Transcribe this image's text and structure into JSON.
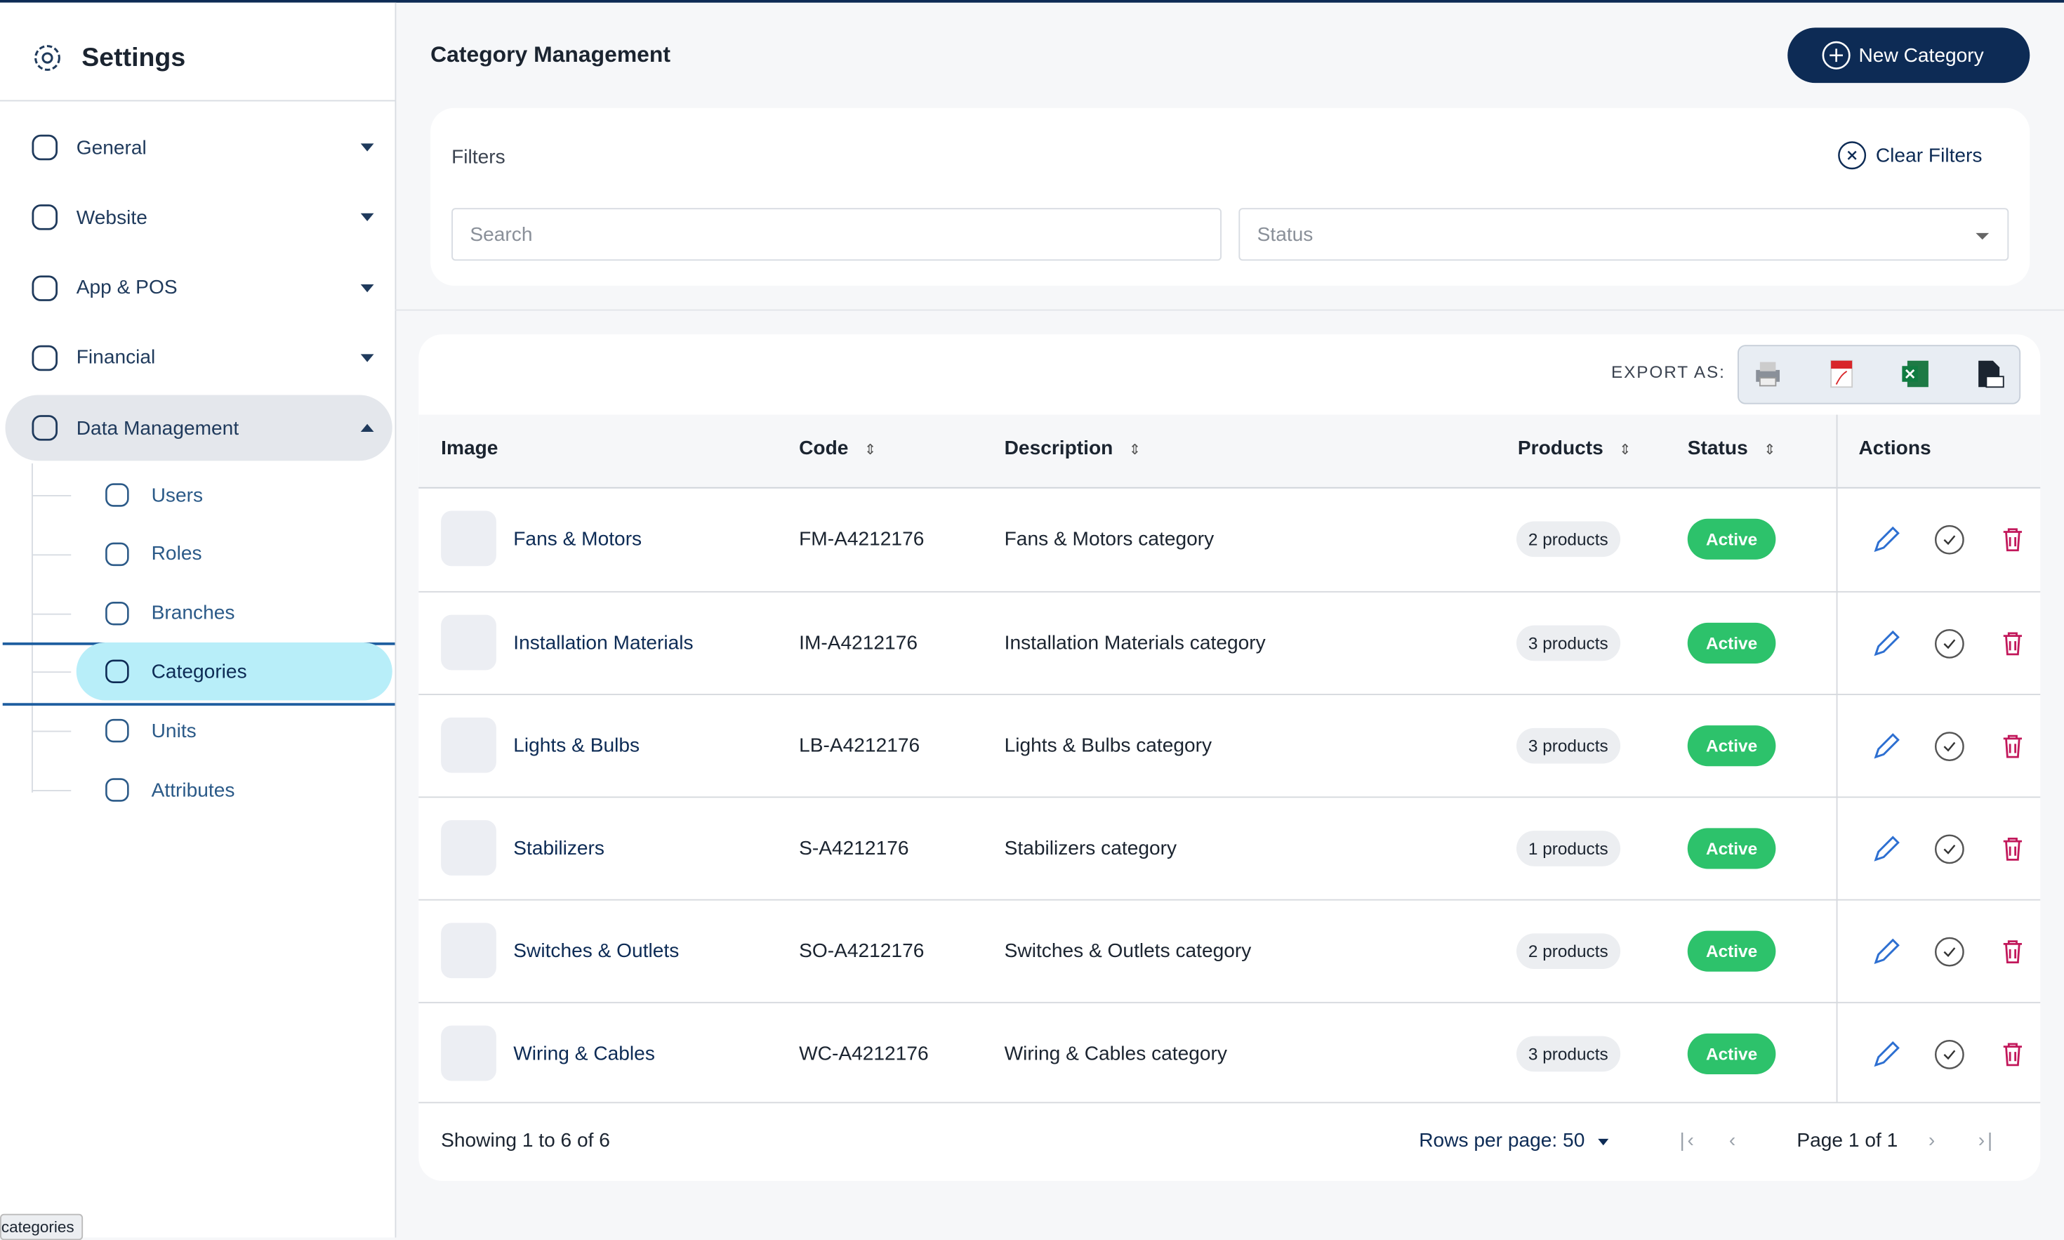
{
  "sidebar": {
    "title": "Settings",
    "menu": [
      {
        "label": "General"
      },
      {
        "label": "Website"
      },
      {
        "label": "App & POS"
      },
      {
        "label": "Financial"
      },
      {
        "label": "Data Management"
      }
    ],
    "submenu": [
      {
        "label": "Users"
      },
      {
        "label": "Roles"
      },
      {
        "label": "Branches"
      },
      {
        "label": "Categories"
      },
      {
        "label": "Units"
      },
      {
        "label": "Attributes"
      }
    ]
  },
  "tooltip": "categories",
  "header": {
    "title": "Category Management",
    "button": "New Category"
  },
  "filters": {
    "title": "Filters",
    "clear": "Clear Filters",
    "search_placeholder": "Search",
    "status_placeholder": "Status"
  },
  "export_label": "EXPORT AS:",
  "table": {
    "columns": [
      "Image",
      "Code",
      "Description",
      "Products",
      "Status",
      "Actions"
    ],
    "rows": [
      [
        "Fans & Motors",
        "FM-A4212176",
        "Fans & Motors category",
        "2 products",
        "Active"
      ],
      [
        "Installation Materials",
        "IM-A4212176",
        "Installation Materials category",
        "3 products",
        "Active"
      ],
      [
        "Lights & Bulbs",
        "LB-A4212176",
        "Lights & Bulbs category",
        "3 products",
        "Active"
      ],
      [
        "Stabilizers",
        "S-A4212176",
        "Stabilizers category",
        "1 products",
        "Active"
      ],
      [
        "Switches & Outlets",
        "SO-A4212176",
        "Switches & Outlets category",
        "2 products",
        "Active"
      ],
      [
        "Wiring & Cables",
        "WC-A4212176",
        "Wiring & Cables category",
        "3 products",
        "Active"
      ]
    ]
  },
  "footer": {
    "showing": "Showing 1 to 6 of 6",
    "rows_per_page": "Rows per page: 50",
    "page": "Page 1 of 1"
  }
}
